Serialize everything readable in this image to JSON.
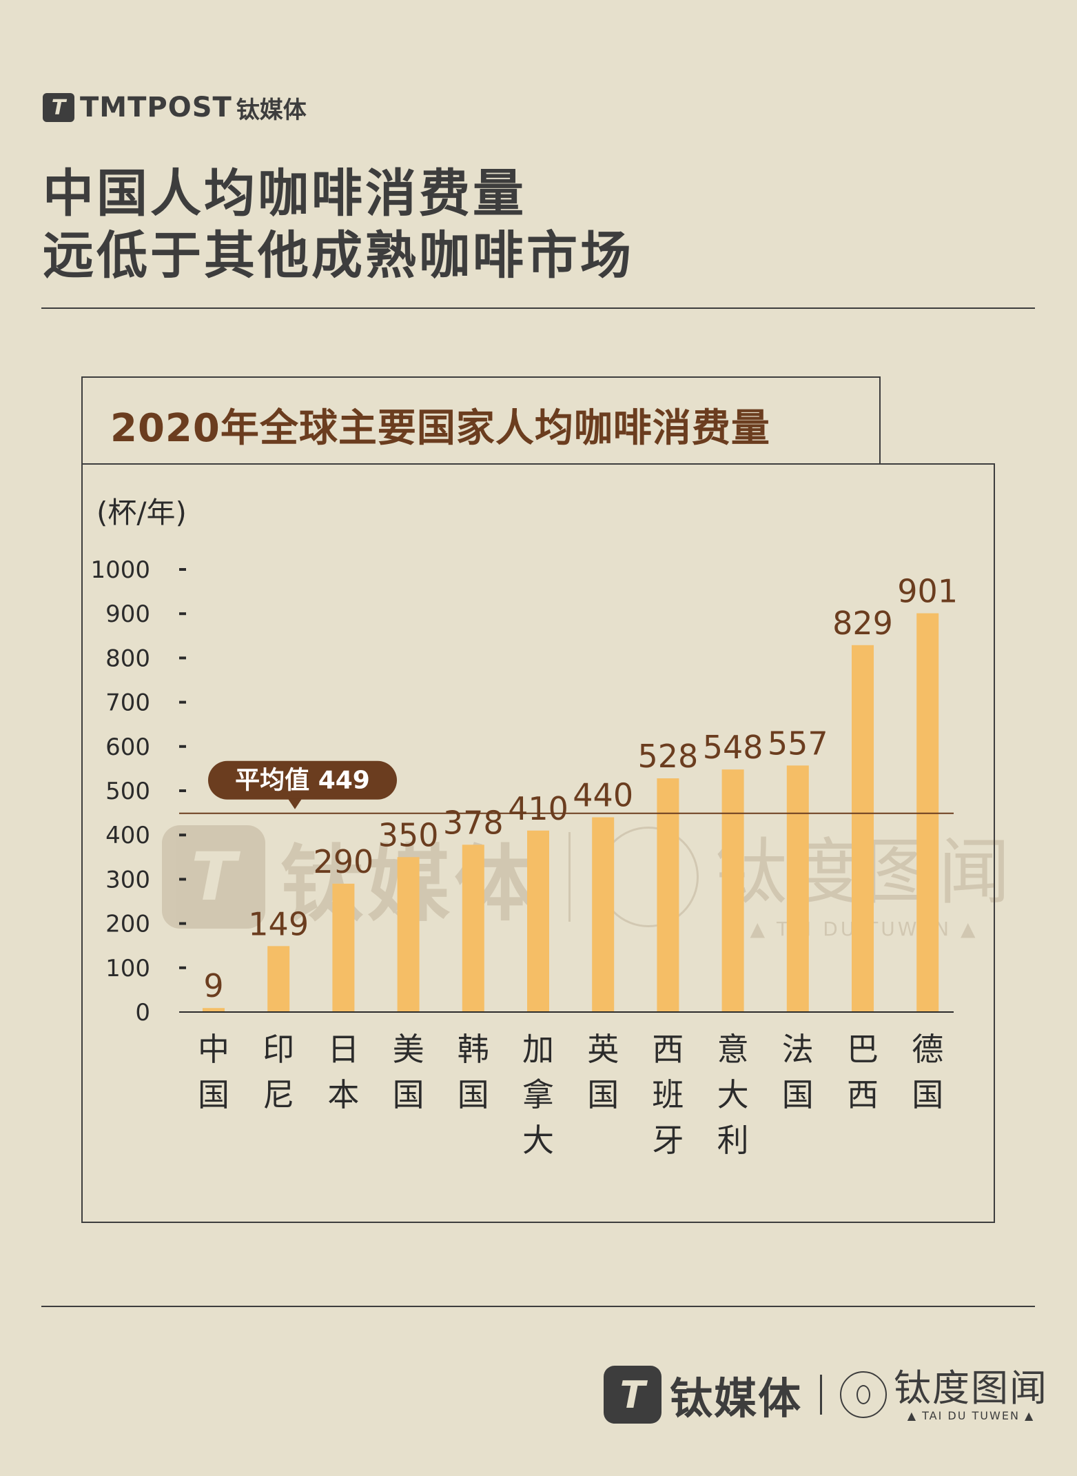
{
  "header": {
    "logo_mark": "T",
    "brand": "TMTPOST",
    "brand_cn": "钛媒体"
  },
  "headline": {
    "line1": "中国人均咖啡消费量",
    "line2": "远低于其他成熟咖啡市场"
  },
  "chart_data": {
    "type": "bar",
    "title": "2020年全球主要国家人均咖啡消费量",
    "ylabel": "(杯/年)",
    "xlabel": "",
    "ylim": [
      0,
      1000
    ],
    "yticks": [
      0,
      100,
      200,
      300,
      400,
      500,
      600,
      700,
      800,
      900,
      1000
    ],
    "categories": [
      "中国",
      "印尼",
      "日本",
      "美国",
      "韩国",
      "加拿大",
      "英国",
      "西班牙",
      "意大利",
      "法国",
      "巴西",
      "德国"
    ],
    "values": [
      9,
      149,
      290,
      350,
      378,
      410,
      440,
      528,
      548,
      557,
      829,
      901
    ],
    "average": {
      "label": "平均值 449",
      "value": 449
    },
    "colors": {
      "bar": "#f5be66",
      "label": "#6b3d1f",
      "axis": "#2b2b2b",
      "badge": "#6b3d1f"
    }
  },
  "watermark": {
    "mark": "T",
    "left_text": "钛媒体",
    "right_text": "钛度图闻",
    "right_sub": "▲ TAI DU TUWEN ▲"
  },
  "footer": {
    "mark": "T",
    "brand_cn": "钛媒体",
    "right_text": "钛度图闻",
    "right_sub": "▲ TAI DU TUWEN ▲"
  }
}
